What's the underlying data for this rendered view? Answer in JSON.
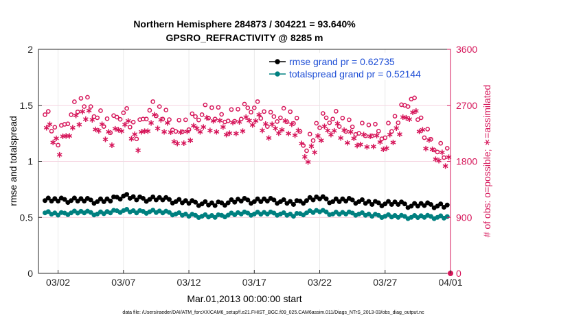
{
  "chart_data": {
    "type": "line",
    "title_line1": "Northern Hemisphere 284873 / 304221 = 93.640%",
    "title_line2": "GPSRO_REFRACTIVITY @ 8285 m",
    "xlabel": "Mar.01,2013 00:00:00 start",
    "ylabel_left": "rmse and totalspread",
    "ylabel_right": "# of obs: o=possible; ∗=assimilated",
    "ylim_left": [
      0,
      2
    ],
    "ylim_right": [
      0,
      3600
    ],
    "xlim_days": [
      -0.5,
      31.0
    ],
    "yticks_left": [
      "0",
      "0.5",
      "1",
      "1.5",
      "2"
    ],
    "yticks_right": [
      "0",
      "900",
      "1800",
      "2700",
      "3600"
    ],
    "xticks": [
      {
        "day": 1,
        "label": "03/02"
      },
      {
        "day": 6,
        "label": "03/07"
      },
      {
        "day": 11,
        "label": "03/12"
      },
      {
        "day": 16,
        "label": "03/17"
      },
      {
        "day": 21,
        "label": "03/22"
      },
      {
        "day": 26,
        "label": "03/27"
      },
      {
        "day": 31,
        "label": "04/01"
      }
    ],
    "legend": [
      {
        "name": "rmse grand pr = 0.62735",
        "color": "#000000"
      },
      {
        "name": "totalspread grand pr = 0.52144",
        "color": "#008080"
      }
    ],
    "series_daily": {
      "days": [
        0,
        1,
        2,
        3,
        4,
        5,
        6,
        7,
        8,
        9,
        10,
        11,
        12,
        13,
        14,
        15,
        16,
        17,
        18,
        19,
        20,
        21,
        22,
        23,
        24,
        25,
        26,
        27,
        28,
        29,
        30
      ],
      "rmse": [
        0.65,
        0.66,
        0.65,
        0.66,
        0.64,
        0.66,
        0.69,
        0.67,
        0.66,
        0.67,
        0.64,
        0.64,
        0.62,
        0.62,
        0.63,
        0.66,
        0.64,
        0.66,
        0.64,
        0.63,
        0.65,
        0.68,
        0.64,
        0.66,
        0.64,
        0.63,
        0.62,
        0.63,
        0.6,
        0.62,
        0.6
      ],
      "totalspread": [
        0.54,
        0.53,
        0.54,
        0.55,
        0.53,
        0.55,
        0.56,
        0.55,
        0.55,
        0.55,
        0.53,
        0.52,
        0.51,
        0.51,
        0.52,
        0.54,
        0.53,
        0.54,
        0.53,
        0.52,
        0.54,
        0.56,
        0.53,
        0.54,
        0.53,
        0.52,
        0.51,
        0.51,
        0.5,
        0.51,
        0.5
      ],
      "obs_possible": [
        2550,
        2200,
        2550,
        2820,
        2500,
        2400,
        2580,
        2300,
        2620,
        2620,
        2280,
        2450,
        2550,
        2620,
        2450,
        2620,
        2660,
        2500,
        2500,
        2550,
        1970,
        2480,
        2480,
        2420,
        2250,
        2350,
        2180,
        2560,
        2800,
        2320,
        1950
      ],
      "obs_assimilated": [
        2350,
        2050,
        2350,
        2620,
        2300,
        2200,
        2400,
        2120,
        2430,
        2420,
        2100,
        2280,
        2360,
        2420,
        2260,
        2430,
        2460,
        2320,
        2320,
        2360,
        1800,
        2280,
        2300,
        2240,
        2080,
        2180,
        2020,
        2380,
        2600,
        2150,
        1820
      ]
    },
    "color_obs": "#d6165a",
    "color_rmse": "#000000",
    "color_spread": "#008080"
  },
  "footnote": "data file: /Users/raeder/DAI/ATM_forcXX/CAM6_setup/f.e21.FHIST_BGC.f09_025.CAM6assim.011/Diags_NTrS_2013-03/obs_diag_output.nc"
}
